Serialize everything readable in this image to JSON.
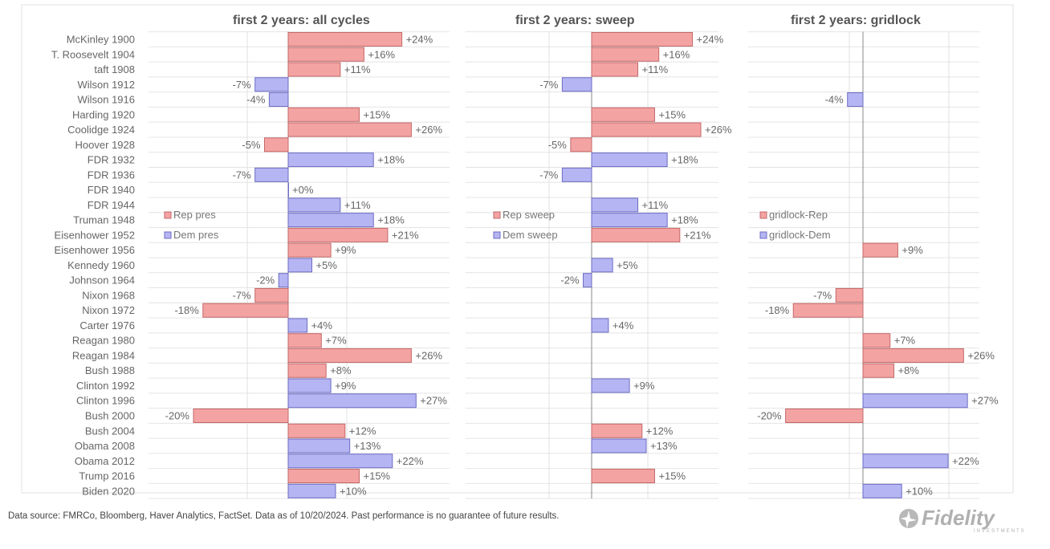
{
  "chart_data": [
    {
      "type": "bar",
      "orientation": "horizontal",
      "title": "first 2 years: all cycles",
      "categories": [
        "McKinley 1900",
        "T. Roosevelt 1904",
        "taft 1908",
        "Wilson 1912",
        "Wilson 1916",
        "Harding 1920",
        "Coolidge 1924",
        "Hoover 1928",
        "FDR 1932",
        "FDR 1936",
        "FDR 1940",
        "FDR 1944",
        "Truman 1948",
        "Eisenhower 1952",
        "Eisenhower 1956",
        "Kennedy 1960",
        "Johnson 1964",
        "Nixon 1968",
        "Nixon 1972",
        "Carter 1976",
        "Reagan 1980",
        "Reagan 1984",
        "Bush 1988",
        "Clinton 1992",
        "Clinton 1996",
        "Bush 2000",
        "Bush 2004",
        "Obama 2008",
        "Obama 2012",
        "Trump 2016",
        "Biden 2020"
      ],
      "values": [
        24,
        16,
        11,
        -7,
        -4,
        15,
        26,
        -5,
        18,
        -7,
        0,
        11,
        18,
        21,
        9,
        5,
        -2,
        -7,
        -18,
        4,
        7,
        26,
        8,
        9,
        27,
        -20,
        12,
        13,
        22,
        15,
        10
      ],
      "party": [
        "R",
        "R",
        "R",
        "D",
        "D",
        "R",
        "R",
        "R",
        "D",
        "D",
        "D",
        "D",
        "D",
        "R",
        "R",
        "D",
        "D",
        "R",
        "R",
        "D",
        "R",
        "R",
        "R",
        "D",
        "D",
        "R",
        "R",
        "D",
        "D",
        "R",
        "D"
      ],
      "legend": [
        {
          "name": "Rep pres",
          "color": "#f4a3a3"
        },
        {
          "name": "Dem pres",
          "color": "#b5b5f3"
        }
      ],
      "legend_position": "lower-left",
      "grid": true
    },
    {
      "type": "bar",
      "orientation": "horizontal",
      "title": "first 2 years: sweep",
      "values": [
        24,
        16,
        11,
        -7,
        null,
        15,
        26,
        -5,
        18,
        -7,
        null,
        11,
        18,
        21,
        null,
        5,
        -2,
        null,
        null,
        4,
        null,
        null,
        null,
        9,
        null,
        null,
        12,
        13,
        null,
        15,
        null
      ],
      "legend": [
        {
          "name": "Rep sweep",
          "color": "#f4a3a3"
        },
        {
          "name": "Dem sweep",
          "color": "#b5b5f3"
        }
      ],
      "legend_position": "lower-left",
      "grid": true
    },
    {
      "type": "bar",
      "orientation": "horizontal",
      "title": "first 2 years: gridlock",
      "values": [
        null,
        null,
        null,
        null,
        -4,
        null,
        null,
        null,
        null,
        null,
        null,
        null,
        null,
        null,
        9,
        null,
        null,
        -7,
        -18,
        null,
        7,
        26,
        8,
        null,
        27,
        -20,
        null,
        null,
        22,
        null,
        10
      ],
      "legend": [
        {
          "name": "gridlock-Rep",
          "color": "#f4a3a3"
        },
        {
          "name": "gridlock-Dem",
          "color": "#b5b5f3"
        }
      ],
      "legend_position": "lower-left",
      "grid": true
    }
  ],
  "colors": {
    "rep": "#f4a3a3",
    "rep_border": "#c46868",
    "dem": "#b5b5f3",
    "dem_border": "#6c6cc4"
  },
  "footer": "Data source: FMRCo, Bloomberg, Haver Analytics, FactSet. Data as of 10/20/2024. Past performance is no guarantee of future results.",
  "logo": {
    "name": "Fidelity",
    "tagline": "INVESTMENTS"
  }
}
